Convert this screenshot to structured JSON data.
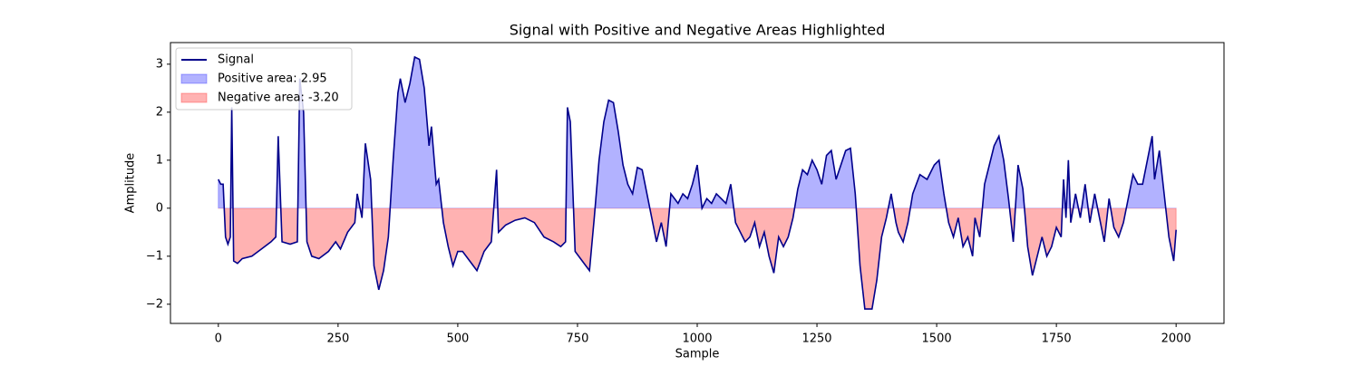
{
  "chart_data": {
    "type": "line",
    "title": "Signal with Positive and Negative Areas Highlighted",
    "xlabel": "Sample",
    "ylabel": "Amplitude",
    "x": [
      0,
      5,
      10,
      15,
      20,
      25,
      28,
      32,
      40,
      50,
      70,
      90,
      110,
      120,
      125,
      133,
      150,
      165,
      170,
      178,
      185,
      195,
      210,
      230,
      245,
      255,
      270,
      285,
      290,
      300,
      307,
      318,
      325,
      335,
      345,
      355,
      365,
      375,
      380,
      390,
      400,
      410,
      420,
      430,
      440,
      445,
      455,
      460,
      470,
      480,
      490,
      500,
      510,
      525,
      540,
      555,
      570,
      581,
      585,
      600,
      620,
      640,
      660,
      680,
      700,
      715,
      725,
      729,
      735,
      745,
      760,
      775,
      785,
      795,
      805,
      815,
      825,
      835,
      845,
      855,
      865,
      875,
      885,
      895,
      905,
      915,
      925,
      935,
      945,
      960,
      970,
      980,
      990,
      1000,
      1010,
      1020,
      1030,
      1040,
      1050,
      1060,
      1070,
      1080,
      1090,
      1100,
      1110,
      1120,
      1130,
      1140,
      1150,
      1160,
      1170,
      1180,
      1190,
      1200,
      1210,
      1220,
      1230,
      1240,
      1250,
      1260,
      1270,
      1280,
      1290,
      1300,
      1310,
      1320,
      1330,
      1340,
      1350,
      1365,
      1375,
      1385,
      1395,
      1405,
      1415,
      1420,
      1430,
      1440,
      1450,
      1465,
      1480,
      1495,
      1505,
      1515,
      1525,
      1535,
      1545,
      1555,
      1565,
      1575,
      1580,
      1590,
      1600,
      1610,
      1620,
      1630,
      1640,
      1650,
      1660,
      1670,
      1680,
      1690,
      1700,
      1710,
      1720,
      1730,
      1740,
      1750,
      1760,
      1765,
      1770,
      1775,
      1780,
      1790,
      1800,
      1810,
      1820,
      1830,
      1840,
      1850,
      1860,
      1870,
      1880,
      1890,
      1900,
      1910,
      1920,
      1930,
      1940,
      1950,
      1955,
      1965,
      1975,
      1985,
      1995,
      2000
    ],
    "series": [
      {
        "name": "Signal",
        "color": "#00008b",
        "values": [
          0.6,
          0.5,
          0.5,
          -0.6,
          -0.75,
          -0.6,
          2.1,
          -1.1,
          -1.15,
          -1.05,
          -1.0,
          -0.85,
          -0.7,
          -0.6,
          1.5,
          -0.7,
          -0.75,
          -0.7,
          2.7,
          2.0,
          -0.7,
          -1.0,
          -1.05,
          -0.9,
          -0.7,
          -0.85,
          -0.5,
          -0.3,
          0.3,
          -0.2,
          1.35,
          0.6,
          -1.2,
          -1.7,
          -1.3,
          -0.6,
          1.0,
          2.4,
          2.7,
          2.2,
          2.6,
          3.15,
          3.1,
          2.5,
          1.3,
          1.7,
          0.5,
          0.6,
          -0.3,
          -0.8,
          -1.2,
          -0.9,
          -0.9,
          -1.1,
          -1.3,
          -0.9,
          -0.7,
          0.8,
          -0.5,
          -0.35,
          -0.25,
          -0.2,
          -0.3,
          -0.6,
          -0.7,
          -0.8,
          -0.7,
          2.1,
          1.8,
          -0.9,
          -1.1,
          -1.3,
          -0.2,
          1.0,
          1.8,
          2.25,
          2.2,
          1.6,
          0.9,
          0.5,
          0.3,
          0.85,
          0.8,
          0.3,
          -0.2,
          -0.7,
          -0.3,
          -0.8,
          0.3,
          0.1,
          0.3,
          0.2,
          0.5,
          0.9,
          0.0,
          0.2,
          0.1,
          0.3,
          0.2,
          0.1,
          0.5,
          -0.3,
          -0.5,
          -0.7,
          -0.6,
          -0.3,
          -0.8,
          -0.5,
          -1.0,
          -1.35,
          -0.6,
          -0.8,
          -0.6,
          -0.2,
          0.4,
          0.8,
          0.7,
          1.0,
          0.8,
          0.5,
          1.1,
          1.2,
          0.6,
          0.9,
          1.2,
          1.25,
          0.3,
          -1.2,
          -2.1,
          -2.1,
          -1.5,
          -0.6,
          -0.2,
          0.3,
          -0.3,
          -0.5,
          -0.7,
          -0.3,
          0.3,
          0.7,
          0.6,
          0.9,
          1.0,
          0.3,
          -0.3,
          -0.6,
          -0.2,
          -0.8,
          -0.6,
          -1.0,
          -0.2,
          -0.6,
          0.5,
          0.9,
          1.3,
          1.5,
          1.0,
          0.2,
          -0.7,
          0.9,
          0.4,
          -0.8,
          -1.4,
          -1.0,
          -0.6,
          -1.0,
          -0.8,
          -0.4,
          -0.6,
          0.6,
          -0.2,
          1.0,
          -0.3,
          0.3,
          -0.2,
          0.5,
          -0.3,
          0.3,
          -0.2,
          -0.7,
          0.2,
          -0.4,
          -0.6,
          -0.3,
          0.2,
          0.7,
          0.5,
          0.5,
          1.0,
          1.5,
          0.6,
          1.2,
          0.3,
          -0.6,
          -1.1,
          -0.45
        ]
      }
    ],
    "fills": [
      {
        "name": "Positive area: 2.95",
        "color": "#0000ff",
        "side": "positive"
      },
      {
        "name": "Negative area: -3.20",
        "color": "#ff0000",
        "side": "negative"
      }
    ],
    "xlim": [
      -100,
      2100
    ],
    "ylim": [
      -2.4,
      3.45
    ],
    "xticks": [
      0,
      250,
      500,
      750,
      1000,
      1250,
      1500,
      1750,
      2000
    ],
    "yticks": [
      {
        "value": -2,
        "label": "−2"
      },
      {
        "value": -1,
        "label": "−1"
      },
      0,
      1,
      2,
      3
    ],
    "legend": "upper left"
  }
}
